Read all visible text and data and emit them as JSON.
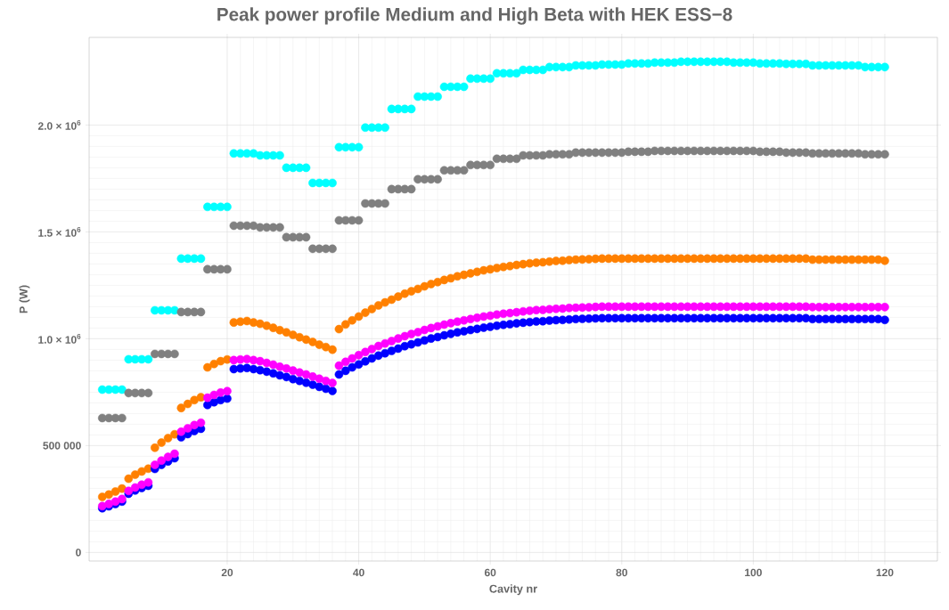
{
  "chart_data": {
    "type": "scatter",
    "title": "Peak power profile Medium and High Beta with HEK ESS−8",
    "xlabel": "Cavity nr",
    "ylabel": "P (W)",
    "x": [
      1,
      2,
      3,
      4,
      5,
      6,
      7,
      8,
      9,
      10,
      11,
      12,
      13,
      14,
      15,
      16,
      17,
      18,
      19,
      20,
      21,
      22,
      23,
      24,
      25,
      26,
      27,
      28,
      29,
      30,
      31,
      32,
      33,
      34,
      35,
      36,
      37,
      38,
      39,
      40,
      41,
      42,
      43,
      44,
      45,
      46,
      47,
      48,
      49,
      50,
      51,
      52,
      53,
      54,
      55,
      56,
      57,
      58,
      59,
      60,
      61,
      62,
      63,
      64,
      65,
      66,
      67,
      68,
      69,
      70,
      71,
      72,
      73,
      74,
      75,
      76,
      77,
      78,
      79,
      80,
      81,
      82,
      83,
      84,
      85,
      86,
      87,
      88,
      89,
      90,
      91,
      92,
      93,
      94,
      95,
      96,
      97,
      98,
      99,
      100,
      101,
      102,
      103,
      104,
      105,
      106,
      107,
      108,
      109,
      110,
      111,
      112,
      113,
      114,
      115,
      116,
      117,
      118,
      119,
      120
    ],
    "series": [
      {
        "color": "#00ffff",
        "values": [
          762000,
          762000,
          762000,
          762000,
          904000,
          904000,
          904000,
          904000,
          1133000,
          1133000,
          1133000,
          1133000,
          1375000,
          1375000,
          1375000,
          1375000,
          1617000,
          1617000,
          1617000,
          1617000,
          1867000,
          1867000,
          1867000,
          1867000,
          1858000,
          1858000,
          1858000,
          1858000,
          1800000,
          1800000,
          1800000,
          1800000,
          1729000,
          1729000,
          1729000,
          1729000,
          1896000,
          1896000,
          1896000,
          1896000,
          1988000,
          1988000,
          1988000,
          1988000,
          2075000,
          2075000,
          2075000,
          2075000,
          2133000,
          2133000,
          2133000,
          2133000,
          2179000,
          2179000,
          2179000,
          2179000,
          2217000,
          2217000,
          2217000,
          2217000,
          2242000,
          2242000,
          2242000,
          2242000,
          2258000,
          2258000,
          2258000,
          2258000,
          2271000,
          2271000,
          2271000,
          2271000,
          2279000,
          2279000,
          2279000,
          2279000,
          2283000,
          2283000,
          2283000,
          2283000,
          2288000,
          2288000,
          2288000,
          2288000,
          2292000,
          2292000,
          2292000,
          2292000,
          2296000,
          2296000,
          2296000,
          2296000,
          2296000,
          2296000,
          2296000,
          2296000,
          2292000,
          2292000,
          2292000,
          2292000,
          2288000,
          2288000,
          2288000,
          2288000,
          2286000,
          2286000,
          2286000,
          2286000,
          2279000,
          2279000,
          2279000,
          2279000,
          2279000,
          2279000,
          2279000,
          2279000,
          2271000,
          2271000,
          2271000,
          2271000
        ]
      },
      {
        "color": "#808080",
        "values": [
          629000,
          629000,
          629000,
          629000,
          746000,
          746000,
          746000,
          746000,
          929000,
          929000,
          929000,
          929000,
          1125000,
          1125000,
          1125000,
          1125000,
          1325000,
          1325000,
          1325000,
          1325000,
          1529000,
          1529000,
          1529000,
          1529000,
          1521000,
          1521000,
          1521000,
          1521000,
          1475000,
          1475000,
          1475000,
          1475000,
          1421000,
          1421000,
          1421000,
          1421000,
          1554000,
          1554000,
          1554000,
          1554000,
          1633000,
          1633000,
          1633000,
          1633000,
          1700000,
          1700000,
          1700000,
          1700000,
          1746000,
          1746000,
          1746000,
          1746000,
          1788000,
          1788000,
          1788000,
          1788000,
          1813000,
          1813000,
          1813000,
          1813000,
          1842000,
          1842000,
          1842000,
          1842000,
          1858000,
          1858000,
          1858000,
          1858000,
          1863000,
          1863000,
          1863000,
          1863000,
          1871000,
          1871000,
          1871000,
          1871000,
          1871000,
          1871000,
          1871000,
          1871000,
          1875000,
          1875000,
          1875000,
          1875000,
          1879000,
          1879000,
          1879000,
          1879000,
          1879000,
          1879000,
          1879000,
          1879000,
          1879000,
          1879000,
          1879000,
          1879000,
          1879000,
          1879000,
          1879000,
          1879000,
          1875000,
          1875000,
          1875000,
          1875000,
          1871000,
          1871000,
          1871000,
          1871000,
          1867000,
          1867000,
          1867000,
          1867000,
          1867000,
          1867000,
          1867000,
          1867000,
          1863000,
          1863000,
          1863000,
          1863000
        ]
      },
      {
        "color": "#ff8000",
        "values": [
          260000,
          271000,
          285000,
          299000,
          345000,
          364000,
          379000,
          392000,
          490000,
          514000,
          535000,
          553000,
          676000,
          695000,
          713000,
          726000,
          866000,
          882000,
          895000,
          903000,
          1076000,
          1080000,
          1083000,
          1076000,
          1070000,
          1061000,
          1051000,
          1040000,
          1030000,
          1018000,
          1007000,
          996000,
          985000,
          972000,
          961000,
          949000,
          1045000,
          1067000,
          1086000,
          1104000,
          1122000,
          1139000,
          1156000,
          1170000,
          1183000,
          1197000,
          1211000,
          1222000,
          1233000,
          1245000,
          1256000,
          1265000,
          1275000,
          1283000,
          1292000,
          1299000,
          1306000,
          1313000,
          1320000,
          1325000,
          1331000,
          1336000,
          1340000,
          1345000,
          1349000,
          1353000,
          1356000,
          1358000,
          1361000,
          1364000,
          1365000,
          1368000,
          1370000,
          1371000,
          1372000,
          1374000,
          1375000,
          1375000,
          1375000,
          1375000,
          1375000,
          1375000,
          1375000,
          1375000,
          1375000,
          1375000,
          1375000,
          1375000,
          1375000,
          1375000,
          1375000,
          1375000,
          1375000,
          1375000,
          1375000,
          1375000,
          1375000,
          1375000,
          1375000,
          1375000,
          1375000,
          1375000,
          1375000,
          1375000,
          1375000,
          1375000,
          1375000,
          1375000,
          1370000,
          1370000,
          1370000,
          1370000,
          1370000,
          1370000,
          1370000,
          1370000,
          1370000,
          1370000,
          1370000,
          1365000
        ]
      },
      {
        "color": "#0000ff",
        "values": [
          207000,
          216000,
          227000,
          238000,
          275000,
          290000,
          302000,
          312000,
          391000,
          410000,
          426000,
          441000,
          539000,
          554000,
          568000,
          579000,
          690000,
          703000,
          713000,
          720000,
          858000,
          861000,
          863000,
          858000,
          853000,
          846000,
          838000,
          829000,
          821000,
          811000,
          803000,
          794000,
          785000,
          775000,
          766000,
          756000,
          833000,
          850000,
          866000,
          880000,
          894000,
          908000,
          921000,
          932000,
          943000,
          954000,
          965000,
          974000,
          983000,
          992000,
          1001000,
          1008000,
          1016000,
          1023000,
          1030000,
          1035000,
          1041000,
          1046000,
          1052000,
          1056000,
          1061000,
          1065000,
          1068000,
          1072000,
          1075000,
          1078000,
          1081000,
          1082000,
          1085000,
          1087000,
          1088000,
          1090000,
          1092000,
          1093000,
          1094000,
          1095000,
          1096000,
          1096000,
          1096000,
          1096000,
          1096000,
          1096000,
          1096000,
          1096000,
          1096000,
          1096000,
          1096000,
          1096000,
          1096000,
          1096000,
          1096000,
          1096000,
          1096000,
          1096000,
          1096000,
          1096000,
          1096000,
          1096000,
          1096000,
          1096000,
          1096000,
          1096000,
          1096000,
          1096000,
          1096000,
          1096000,
          1096000,
          1096000,
          1092000,
          1092000,
          1092000,
          1092000,
          1092000,
          1092000,
          1092000,
          1092000,
          1092000,
          1092000,
          1092000,
          1088000
        ]
      },
      {
        "color": "#ff00ff",
        "values": [
          217000,
          227000,
          238000,
          250000,
          288000,
          304000,
          317000,
          328000,
          410000,
          430000,
          447000,
          462000,
          565000,
          581000,
          596000,
          607000,
          724000,
          737000,
          748000,
          755000,
          900000,
          903000,
          905000,
          900000,
          895000,
          887000,
          879000,
          869000,
          861000,
          851000,
          842000,
          833000,
          823000,
          813000,
          803000,
          793000,
          874000,
          892000,
          908000,
          923000,
          938000,
          952000,
          966000,
          978000,
          989000,
          1001000,
          1012000,
          1022000,
          1031000,
          1041000,
          1050000,
          1058000,
          1066000,
          1073000,
          1080000,
          1086000,
          1092000,
          1098000,
          1104000,
          1108000,
          1113000,
          1117000,
          1120000,
          1124000,
          1128000,
          1131000,
          1134000,
          1135000,
          1138000,
          1140000,
          1141000,
          1144000,
          1145000,
          1146000,
          1147000,
          1149000,
          1150000,
          1150000,
          1150000,
          1150000,
          1150000,
          1150000,
          1150000,
          1150000,
          1150000,
          1150000,
          1150000,
          1150000,
          1150000,
          1150000,
          1150000,
          1150000,
          1150000,
          1150000,
          1150000,
          1150000,
          1150000,
          1150000,
          1150000,
          1150000,
          1150000,
          1150000,
          1150000,
          1150000,
          1150000,
          1150000,
          1150000,
          1150000,
          1148000,
          1148000,
          1148000,
          1148000,
          1148000,
          1148000,
          1148000,
          1148000,
          1148000,
          1148000,
          1148000,
          1148000
        ]
      }
    ],
    "xlim": [
      -1,
      128
    ],
    "ylim": [
      -40000,
      2410000
    ],
    "xticks": [
      20,
      40,
      60,
      80,
      100,
      120
    ],
    "yticks": [
      {
        "value": 0,
        "label": "0"
      },
      {
        "value": 500000,
        "label": "500 000"
      },
      {
        "value": 1000000,
        "label": "1.0 × 10$^{6}$"
      },
      {
        "value": 1500000,
        "label": "1.5 × 10$^{6}$"
      },
      {
        "value": 2000000,
        "label": "2.0 × 10$^{6}$"
      }
    ],
    "grid": true
  }
}
